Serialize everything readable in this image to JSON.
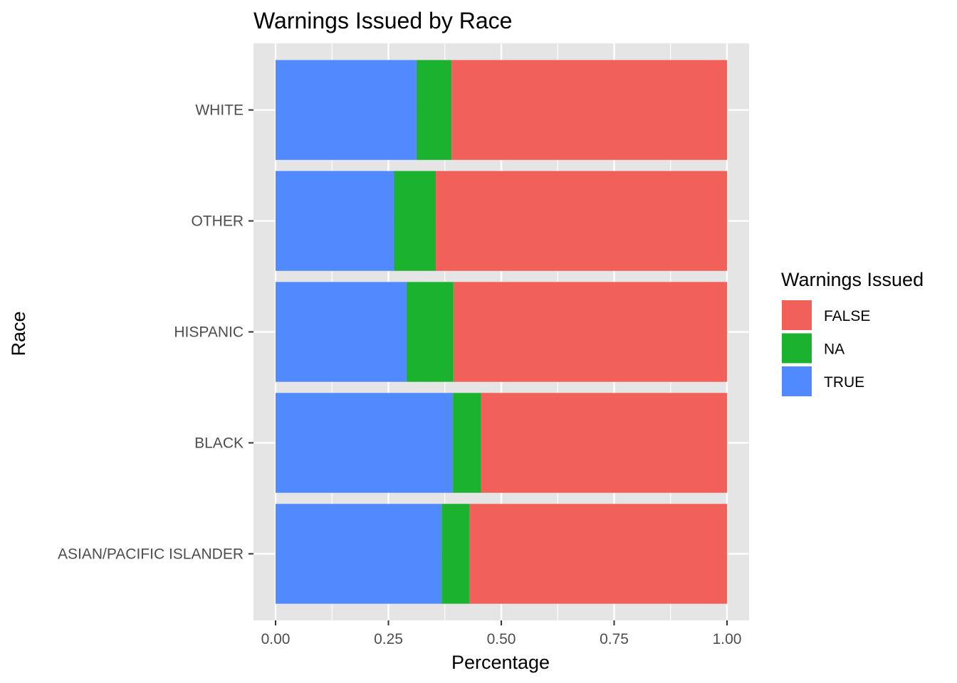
{
  "chart_data": {
    "type": "bar",
    "orientation": "horizontal",
    "stacked": true,
    "title": "Warnings Issued by Race",
    "xlabel": "Percentage",
    "ylabel": "Race",
    "xlim": [
      0,
      1
    ],
    "xticks": [
      0,
      0.25,
      0.5,
      0.75,
      1.0
    ],
    "xtick_labels": [
      "0.00",
      "0.25",
      "0.50",
      "0.75",
      "1.00"
    ],
    "categories": [
      "WHITE",
      "OTHER",
      "HISPANIC",
      "BLACK",
      "ASIAN/PACIFIC ISLANDER"
    ],
    "series": [
      {
        "name": "TRUE",
        "color": "#518aff",
        "values": [
          0.312,
          0.262,
          0.29,
          0.393,
          0.368
        ]
      },
      {
        "name": "NA",
        "color": "#1ab22f",
        "values": [
          0.078,
          0.093,
          0.104,
          0.062,
          0.062
        ]
      },
      {
        "name": "FALSE",
        "color": "#f2605a",
        "values": [
          0.61,
          0.645,
          0.606,
          0.545,
          0.57
        ]
      }
    ],
    "legend": {
      "title": "Warnings Issued",
      "position": "right",
      "entries": [
        {
          "label": "FALSE",
          "color": "#f2605a"
        },
        {
          "label": "NA",
          "color": "#1ab22f"
        },
        {
          "label": "TRUE",
          "color": "#518aff"
        }
      ]
    },
    "panel_background": "#e5e5e5",
    "grid_color": "#ffffff",
    "grid": true
  }
}
